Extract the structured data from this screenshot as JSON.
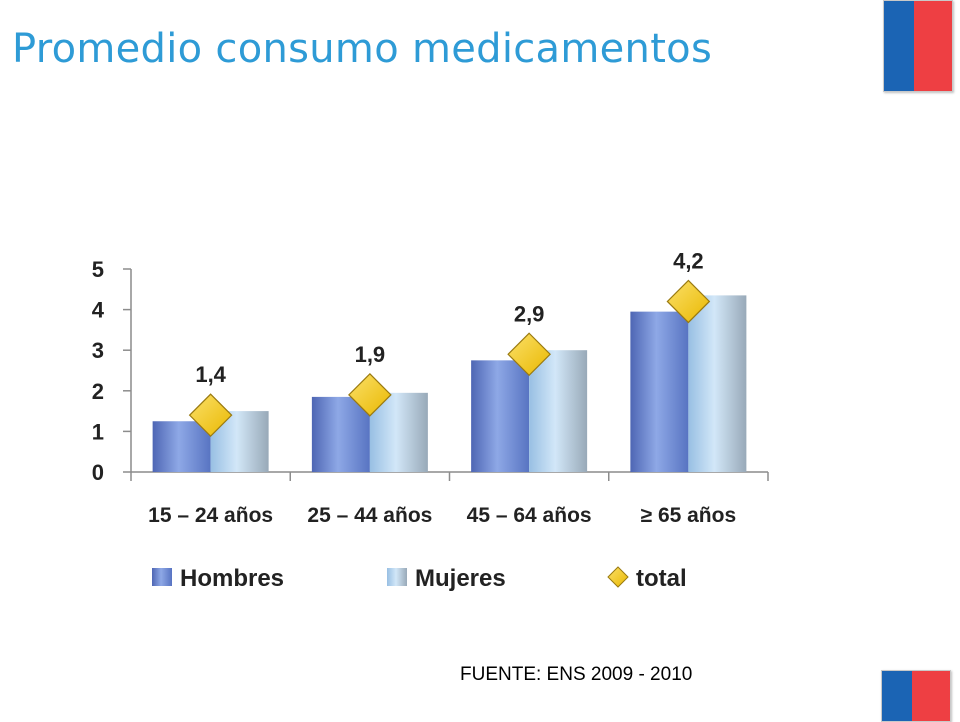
{
  "slide": {
    "title": "Promedio consumo medicamentos",
    "source": "FUENTE: ENS 2009 - 2010"
  },
  "colors": {
    "title": "#2e9bd6",
    "hombres": "#6c88d0",
    "mujeres": "#b4d4ee",
    "total": "#f5c518",
    "flag_blue": "#1b64b4",
    "flag_red": "#ee3f43"
  },
  "chart_data": {
    "type": "bar",
    "title": "",
    "xlabel": "",
    "ylabel": "",
    "categories": [
      "15 – 24 años",
      "25 – 44 años",
      "45 – 64 años",
      "≥ 65 años"
    ],
    "series": [
      {
        "name": "Hombres",
        "type": "bar",
        "values": [
          1.25,
          1.85,
          2.75,
          3.95
        ]
      },
      {
        "name": "Mujeres",
        "type": "bar",
        "values": [
          1.5,
          1.95,
          3.0,
          4.35
        ]
      },
      {
        "name": "total",
        "type": "marker",
        "marker": "diamond",
        "values": [
          1.4,
          1.9,
          2.9,
          4.2
        ],
        "labels": [
          "1,4",
          "1,9",
          "2,9",
          "4,2"
        ]
      }
    ],
    "ylim": [
      0,
      5
    ],
    "yticks": [
      0,
      1,
      2,
      3,
      4,
      5
    ],
    "grid": false,
    "legend_position": "bottom"
  }
}
